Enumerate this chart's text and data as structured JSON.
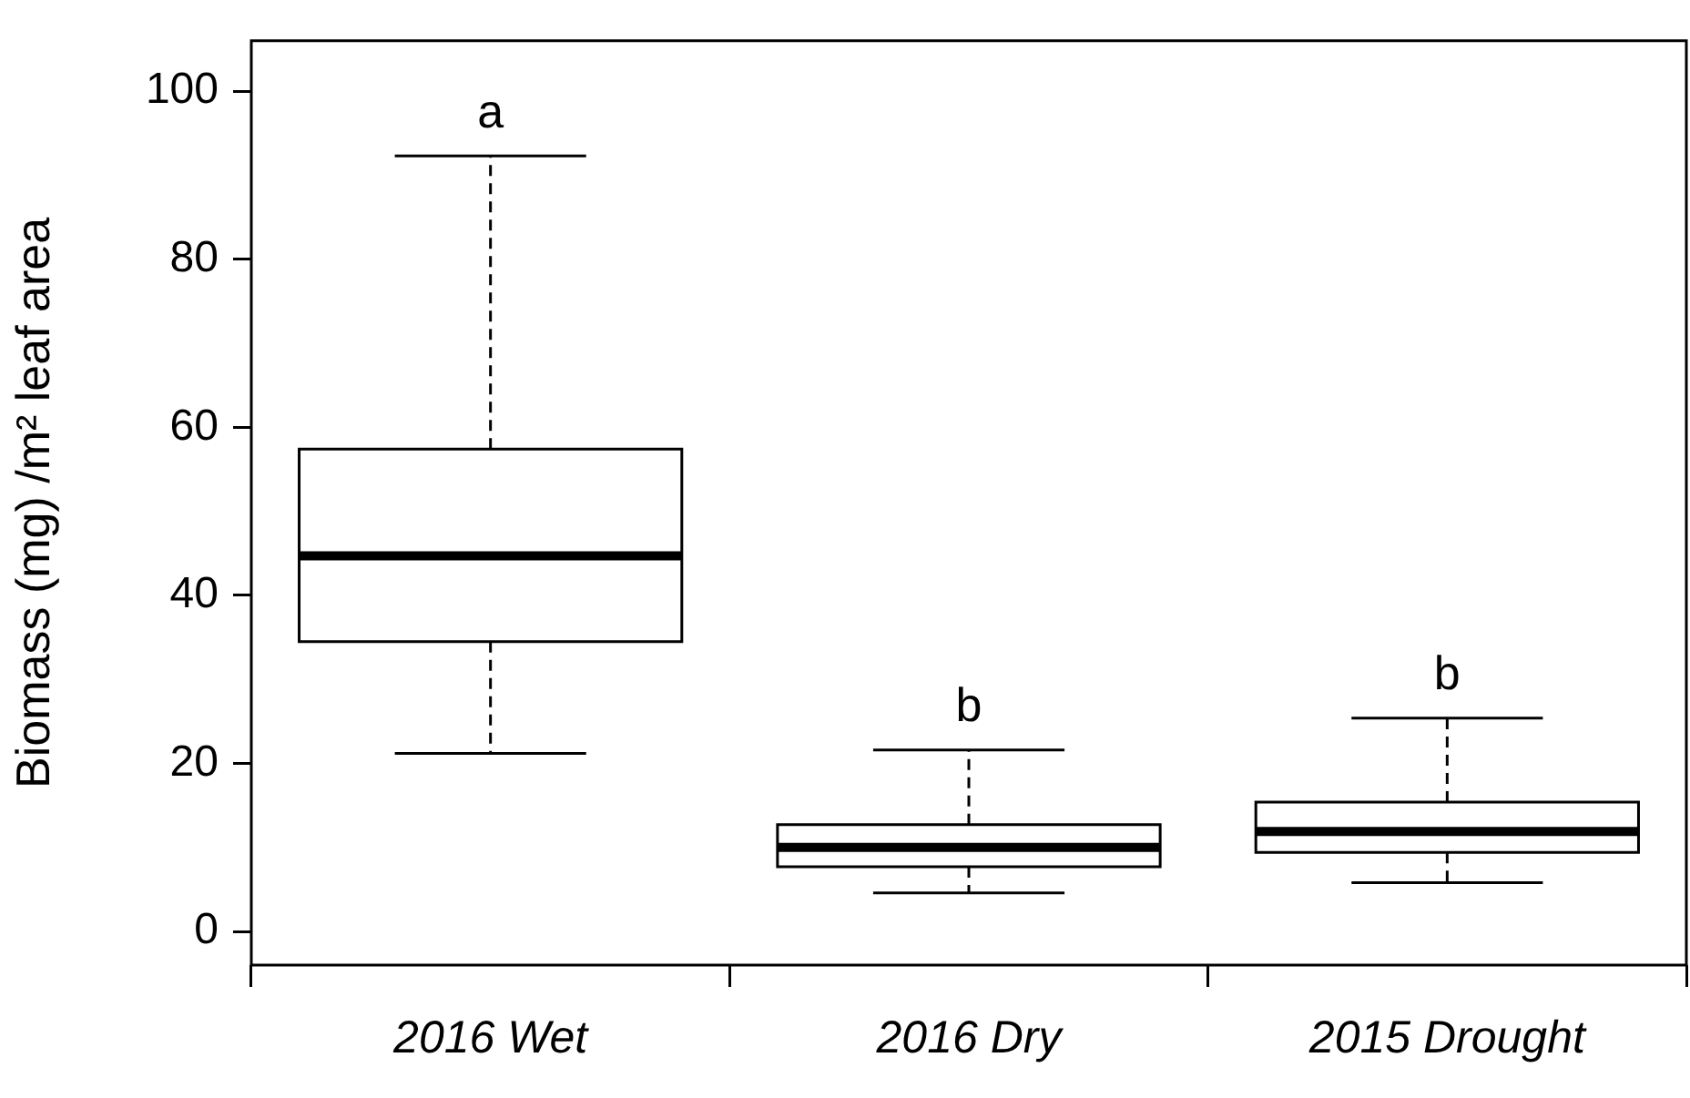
{
  "chart_data": {
    "type": "box",
    "ylabel": "Biomass (mg) /m² leaf area",
    "categories": [
      "2016 Wet",
      "2016 Dry",
      "2015 Drought"
    ],
    "boxes": [
      {
        "low": 21.2,
        "q1": 34.5,
        "median": 44.7,
        "q3": 57.4,
        "high": 92.3
      },
      {
        "low": 4.6,
        "q1": 7.7,
        "median": 10.0,
        "q3": 12.7,
        "high": 21.6
      },
      {
        "low": 5.8,
        "q1": 9.4,
        "median": 11.9,
        "q3": 15.4,
        "high": 25.4
      }
    ],
    "ylim": [
      -4,
      106
    ],
    "yticks": [
      0,
      20,
      40,
      60,
      80,
      100
    ],
    "grid": false,
    "legend": false,
    "annotations": [
      "a",
      "b",
      "b"
    ]
  }
}
